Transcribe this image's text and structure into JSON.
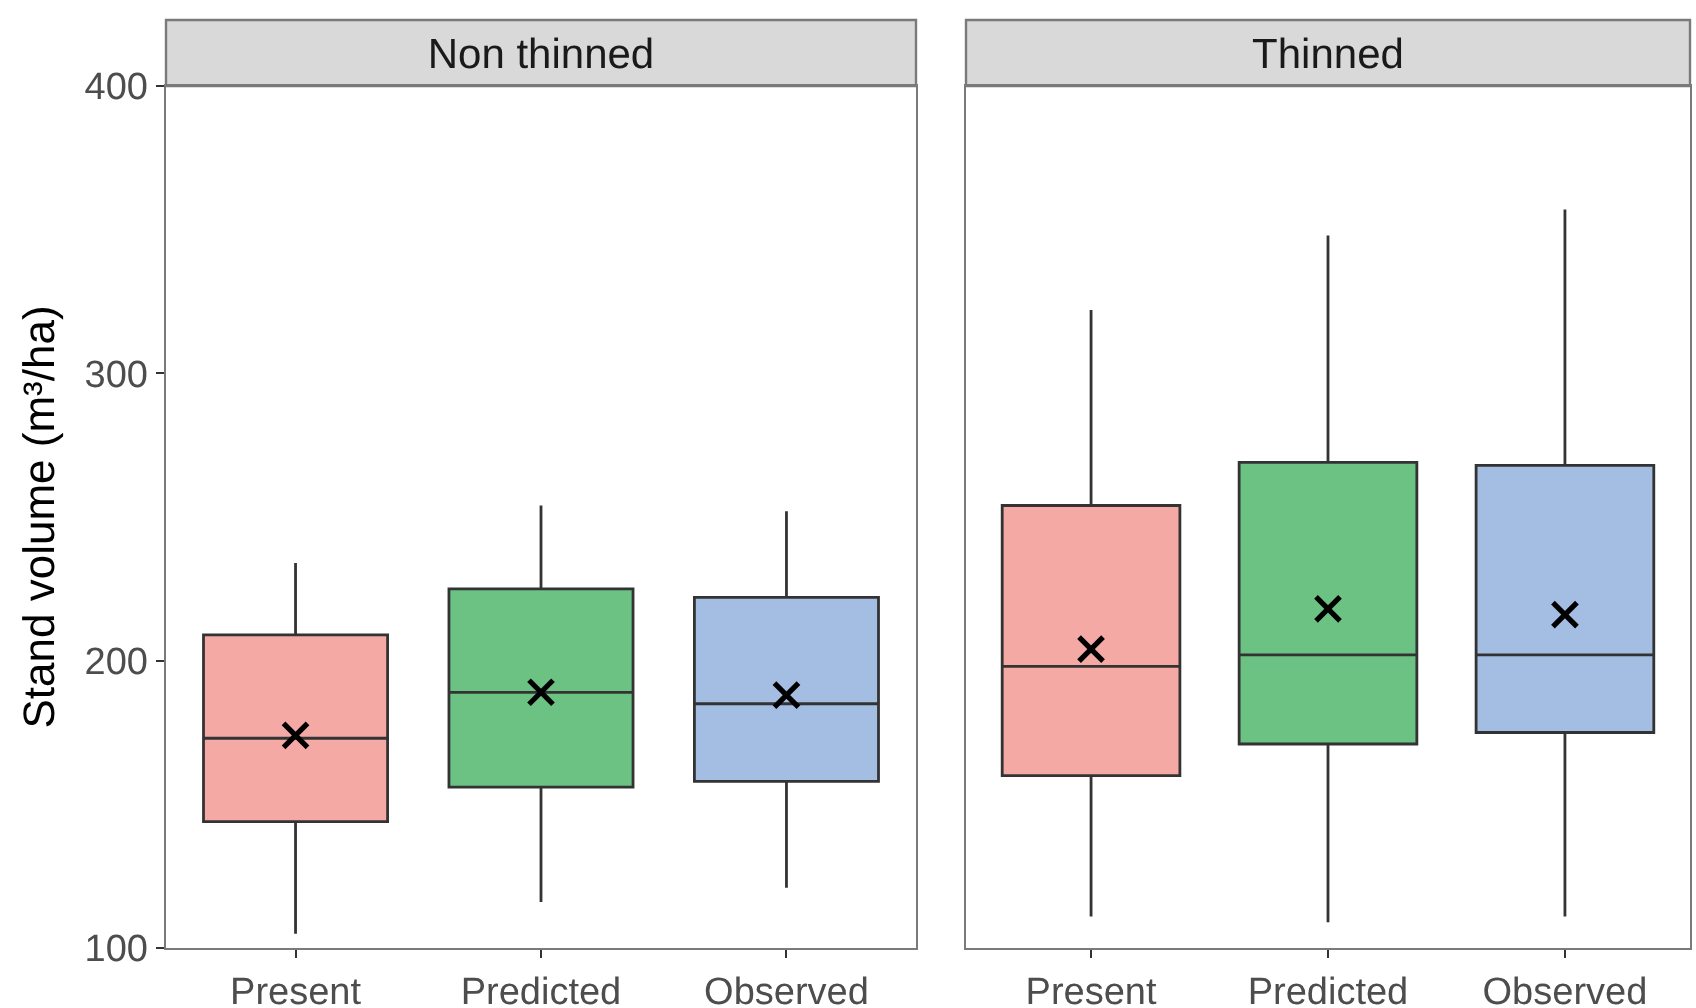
{
  "chart_data": [
    {
      "type": "box",
      "title": "Non thinned",
      "ylabel": "Stand volume (m³/ha)",
      "categories": [
        "Present",
        "Predicted",
        "Observed"
      ],
      "colors": [
        "#f4a9a4",
        "#6bc282",
        "#a3bee2"
      ],
      "boxes": [
        {
          "low": 105,
          "q1": 144,
          "median": 173,
          "q3": 209,
          "high": 234,
          "mean": 174
        },
        {
          "low": 116,
          "q1": 156,
          "median": 189,
          "q3": 225,
          "high": 254,
          "mean": 189
        },
        {
          "low": 121,
          "q1": 158,
          "median": 185,
          "q3": 222,
          "high": 252,
          "mean": 188
        }
      ],
      "ylim": [
        100,
        400
      ],
      "yticks": [
        100,
        200,
        300,
        400
      ],
      "marker": "cross"
    },
    {
      "type": "box",
      "title": "Thinned",
      "categories": [
        "Present",
        "Predicted",
        "Observed"
      ],
      "colors": [
        "#f4a9a4",
        "#6bc282",
        "#a3bee2"
      ],
      "boxes": [
        {
          "low": 111,
          "q1": 160,
          "median": 198,
          "q3": 254,
          "high": 322,
          "mean": 204
        },
        {
          "low": 109,
          "q1": 171,
          "median": 202,
          "q3": 269,
          "high": 348,
          "mean": 218
        },
        {
          "low": 111,
          "q1": 175,
          "median": 202,
          "q3": 268,
          "high": 357,
          "mean": 216
        }
      ],
      "ylim": [
        100,
        400
      ],
      "yticks": [
        100,
        200,
        300,
        400
      ],
      "marker": "cross",
      "tick_labels": "x"
    }
  ]
}
